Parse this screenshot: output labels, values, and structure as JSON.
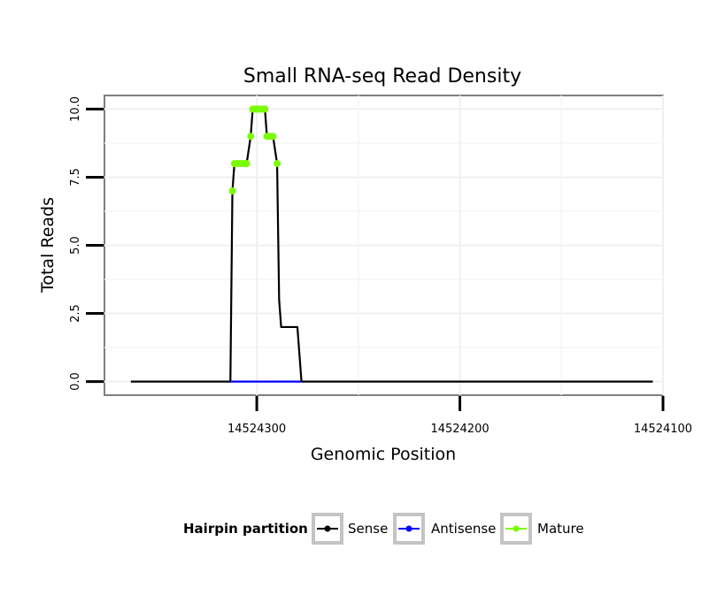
{
  "chart_data": {
    "type": "line",
    "title": "Small RNA-seq Read Density",
    "xlabel": "Genomic Position",
    "ylabel": "Total Reads",
    "x_reversed": true,
    "xlim": [
      14524375,
      14524100
    ],
    "ylim": [
      -0.5,
      10.5
    ],
    "x_ticks": [
      {
        "value": 14524300,
        "label": "14524300"
      },
      {
        "value": 14524200,
        "label": "14524200"
      },
      {
        "value": 14524100,
        "label": "14524100"
      }
    ],
    "y_ticks": [
      {
        "value": 0,
        "label": "0.0"
      },
      {
        "value": 2.5,
        "label": "2.5"
      },
      {
        "value": 5,
        "label": "5.0"
      },
      {
        "value": 7.5,
        "label": "7.5"
      },
      {
        "value": 10,
        "label": "10.0"
      }
    ],
    "grid": true,
    "legend": {
      "title": "Hairpin partition",
      "position": "bottom",
      "entries": [
        {
          "label": "Sense",
          "color": "#000000"
        },
        {
          "label": "Antisense",
          "color": "#0000ff"
        },
        {
          "label": "Mature",
          "color": "#7cfc00"
        }
      ]
    },
    "series": [
      {
        "name": "Sense",
        "color": "#000000",
        "points": [
          [
            14524362,
            0
          ],
          [
            14524313,
            0
          ],
          [
            14524312,
            7
          ],
          [
            14524311,
            8
          ],
          [
            14524308,
            8
          ],
          [
            14524305,
            8
          ],
          [
            14524303,
            9
          ],
          [
            14524302,
            10
          ],
          [
            14524299,
            10
          ],
          [
            14524296,
            10
          ],
          [
            14524295,
            9
          ],
          [
            14524292,
            9
          ],
          [
            14524290,
            8
          ],
          [
            14524289,
            3
          ],
          [
            14524288,
            2
          ],
          [
            14524284,
            2
          ],
          [
            14524280,
            2
          ],
          [
            14524278,
            0
          ],
          [
            14524230,
            0
          ],
          [
            14524187,
            0
          ],
          [
            14524105,
            0
          ]
        ]
      },
      {
        "name": "Antisense",
        "color": "#0000ff",
        "points": [
          [
            14524313,
            0
          ],
          [
            14524278,
            0
          ]
        ]
      },
      {
        "name": "Mature",
        "color": "#7cfc00",
        "points": [
          [
            14524312,
            7
          ],
          [
            14524311,
            8
          ],
          [
            14524310,
            8
          ],
          [
            14524309,
            8
          ],
          [
            14524308,
            8
          ],
          [
            14524307,
            8
          ],
          [
            14524306,
            8
          ],
          [
            14524305,
            8
          ],
          [
            14524303,
            9
          ],
          [
            14524302,
            10
          ],
          [
            14524301,
            10
          ],
          [
            14524300,
            10
          ],
          [
            14524299,
            10
          ],
          [
            14524298,
            10
          ],
          [
            14524297,
            10
          ],
          [
            14524296,
            10
          ],
          [
            14524295,
            9
          ],
          [
            14524294,
            9
          ],
          [
            14524293,
            9
          ],
          [
            14524292,
            9
          ],
          [
            14524290,
            8
          ]
        ]
      }
    ]
  }
}
